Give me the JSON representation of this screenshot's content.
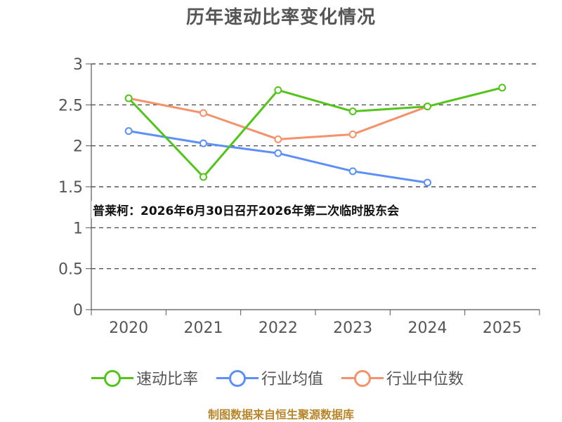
{
  "title": "历年速动比率变化情况",
  "headline": "普莱柯：2026年6月30日召开2026年第二次临时股东会",
  "footer": "制图数据来自恒生聚源数据库",
  "chart_data": {
    "type": "line",
    "title": "历年速动比率变化情况",
    "x": [
      "2020",
      "2021",
      "2022",
      "2023",
      "2024",
      "2025"
    ],
    "ylim": [
      0,
      3
    ],
    "yticks": [
      "0",
      "0.5",
      "1",
      "1.5",
      "2",
      "2.5",
      "3"
    ],
    "ytick_values": [
      0,
      0.5,
      1,
      1.5,
      2,
      2.5,
      3
    ],
    "grid": true,
    "legend_position": "bottom",
    "series": [
      {
        "name": "速动比率",
        "color": "#52c41a",
        "values": [
          2.58,
          1.62,
          2.68,
          2.42,
          2.48,
          2.71
        ]
      },
      {
        "name": "行业均值",
        "color": "#5b8ff9",
        "values": [
          2.18,
          2.03,
          1.91,
          1.69,
          1.55,
          null
        ]
      },
      {
        "name": "行业中位数",
        "color": "#f4926a",
        "values": [
          2.58,
          2.4,
          2.08,
          2.14,
          2.48,
          null
        ]
      }
    ]
  },
  "legend": [
    {
      "label": "速动比率",
      "color": "#52c41a"
    },
    {
      "label": "行业均值",
      "color": "#5b8ff9"
    },
    {
      "label": "行业中位数",
      "color": "#f4926a"
    }
  ]
}
